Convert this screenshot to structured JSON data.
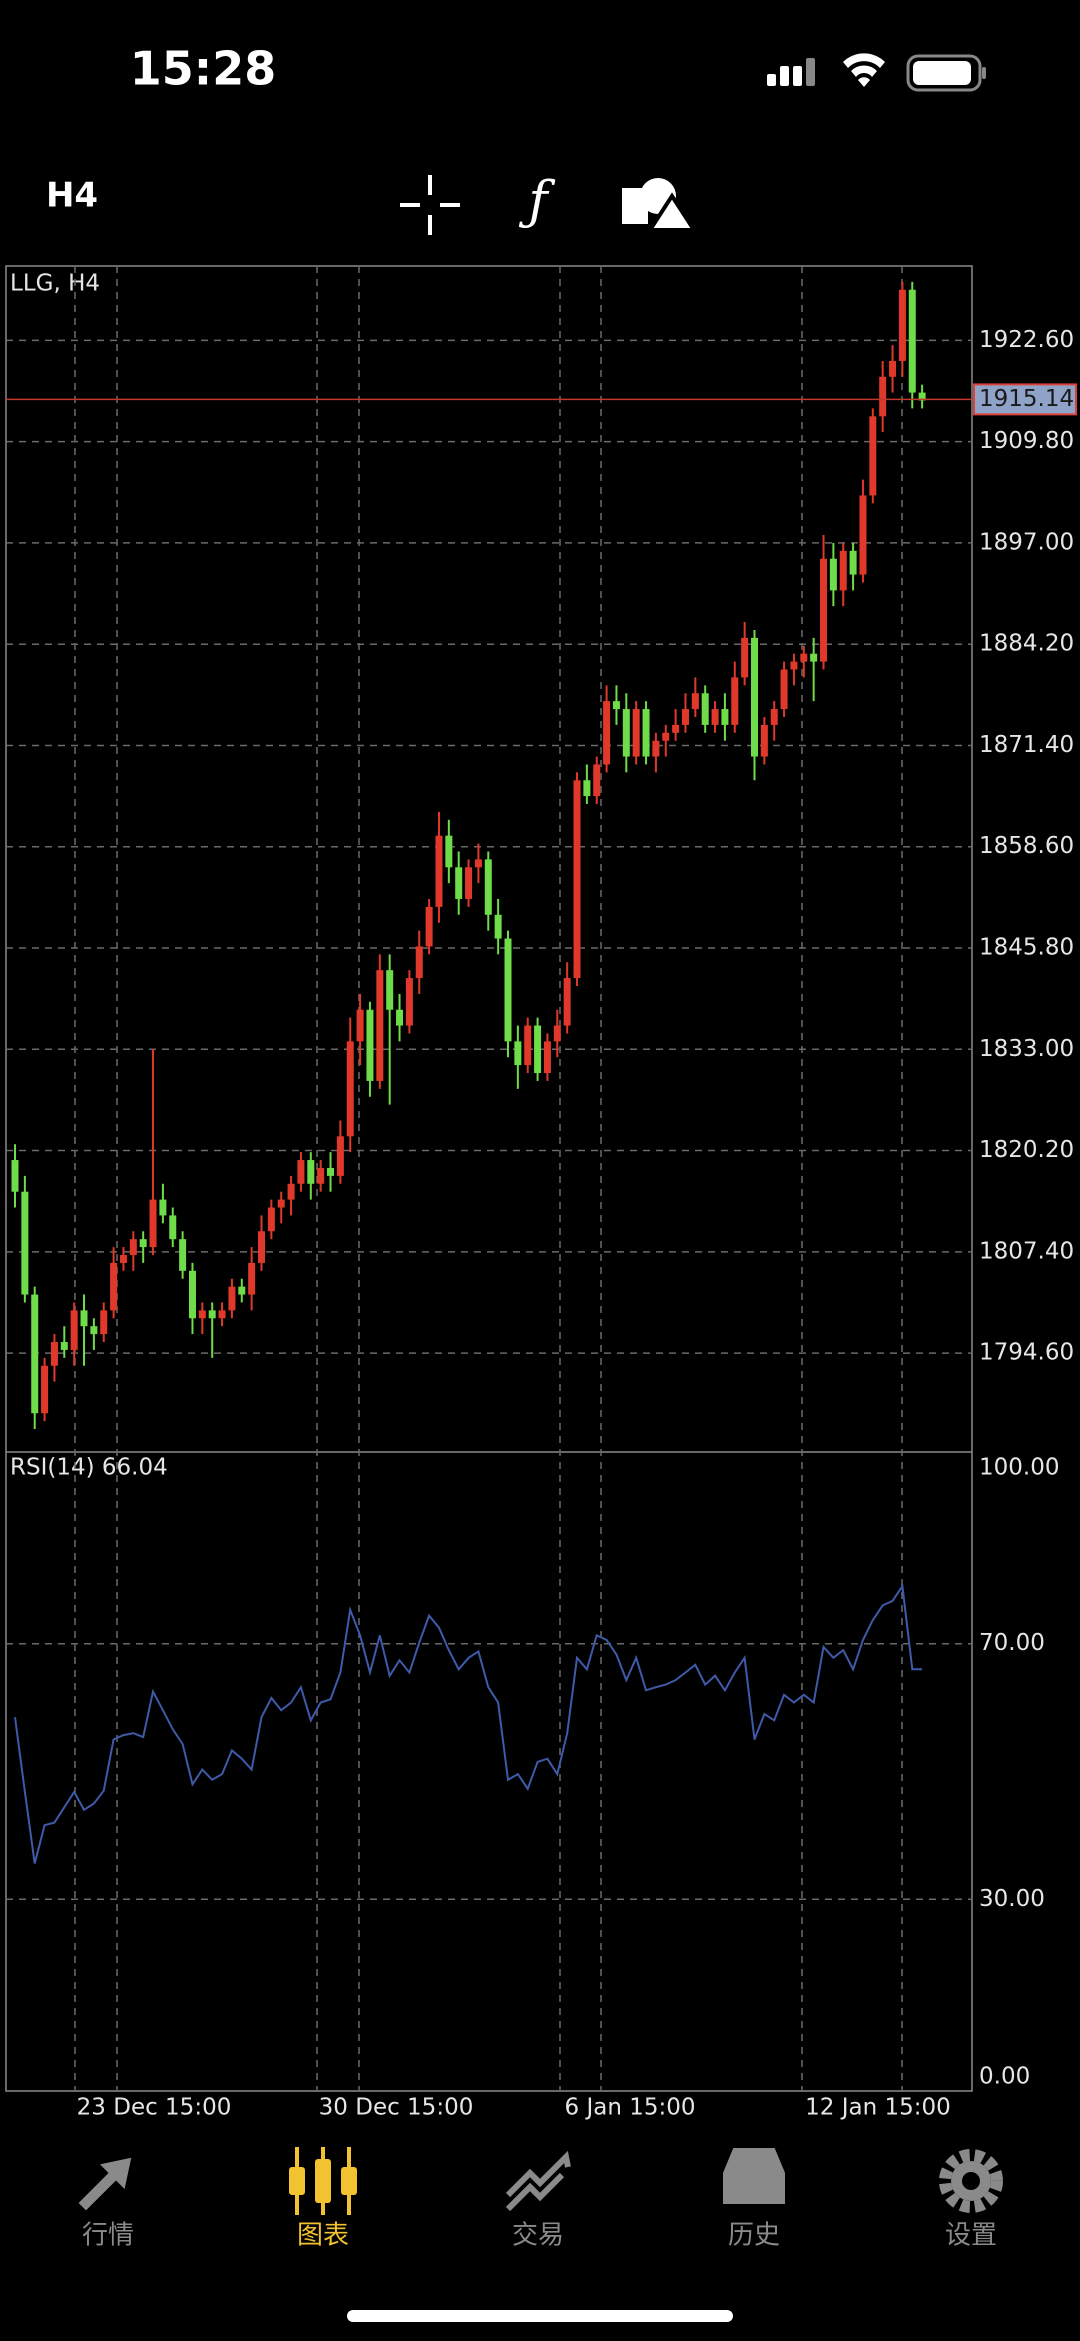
{
  "status_bar": {
    "time": "15:28"
  },
  "toolbar": {
    "timeframe": "H4"
  },
  "chart_data": {
    "type": "candlestick",
    "label": "LLG, H4",
    "up_color": "#e0392b",
    "down_color": "#6fdc4a",
    "ylim": [
      1782.1,
      1932.0
    ],
    "yticks": [
      {
        "value": 1794.6,
        "label": "1794.60"
      },
      {
        "value": 1807.4,
        "label": "1807.40"
      },
      {
        "value": 1820.2,
        "label": "1820.20"
      },
      {
        "value": 1833,
        "label": "1833.00"
      },
      {
        "value": 1845.8,
        "label": "1845.80"
      },
      {
        "value": 1858.6,
        "label": "1858.60"
      },
      {
        "value": 1871.4,
        "label": "1871.40"
      },
      {
        "value": 1884.2,
        "label": "1884.20"
      },
      {
        "value": 1897,
        "label": "1897.00"
      },
      {
        "value": 1909.8,
        "label": "1909.80"
      },
      {
        "value": 1922.6,
        "label": "1922.60"
      }
    ],
    "last_price": 1915.14,
    "xtick_labels": [
      "23 Dec 15:00",
      "30 Dec 15:00",
      "6 Jan 15:00",
      "12 Jan 15:00"
    ],
    "candles": [
      [
        1819,
        1821,
        1813,
        1815
      ],
      [
        1815,
        1817,
        1801,
        1802
      ],
      [
        1802,
        1803,
        1785,
        1787
      ],
      [
        1787,
        1794,
        1786,
        1793
      ],
      [
        1793,
        1797,
        1791,
        1796
      ],
      [
        1796,
        1798,
        1794,
        1795
      ],
      [
        1795,
        1801,
        1793,
        1800
      ],
      [
        1800,
        1802,
        1793,
        1798
      ],
      [
        1798,
        1799,
        1795,
        1797
      ],
      [
        1797,
        1801,
        1796,
        1800
      ],
      [
        1800,
        1808,
        1799,
        1806
      ],
      [
        1806,
        1808,
        1805,
        1807
      ],
      [
        1807,
        1810,
        1805,
        1809
      ],
      [
        1809,
        1810,
        1806,
        1808
      ],
      [
        1808,
        1833,
        1807,
        1814
      ],
      [
        1814,
        1816,
        1811,
        1812
      ],
      [
        1812,
        1813,
        1808,
        1809
      ],
      [
        1809,
        1810,
        1804,
        1805
      ],
      [
        1805,
        1806,
        1797,
        1799
      ],
      [
        1799,
        1801,
        1797,
        1800
      ],
      [
        1800,
        1801,
        1794,
        1799
      ],
      [
        1799,
        1801,
        1798,
        1800
      ],
      [
        1800,
        1804,
        1799,
        1803
      ],
      [
        1803,
        1804,
        1801,
        1802
      ],
      [
        1802,
        1808,
        1800,
        1806
      ],
      [
        1806,
        1812,
        1805,
        1810
      ],
      [
        1810,
        1814,
        1809,
        1813
      ],
      [
        1813,
        1815,
        1811,
        1814
      ],
      [
        1814,
        1817,
        1812,
        1816
      ],
      [
        1816,
        1820,
        1815,
        1819
      ],
      [
        1819,
        1820,
        1814,
        1816
      ],
      [
        1816,
        1819,
        1815,
        1818
      ],
      [
        1818,
        1820,
        1815,
        1817
      ],
      [
        1817,
        1824,
        1816,
        1822
      ],
      [
        1822,
        1837,
        1820,
        1834
      ],
      [
        1834,
        1840,
        1831,
        1838
      ],
      [
        1838,
        1839,
        1827,
        1829
      ],
      [
        1829,
        1845,
        1828,
        1843
      ],
      [
        1843,
        1845,
        1826,
        1838
      ],
      [
        1838,
        1840,
        1834,
        1836
      ],
      [
        1836,
        1843,
        1835,
        1842
      ],
      [
        1842,
        1848,
        1840,
        1846
      ],
      [
        1846,
        1852,
        1845,
        1851
      ],
      [
        1851,
        1863,
        1849,
        1860
      ],
      [
        1860,
        1862,
        1854,
        1856
      ],
      [
        1856,
        1858,
        1850,
        1852
      ],
      [
        1852,
        1857,
        1851,
        1856
      ],
      [
        1856,
        1859,
        1854,
        1857
      ],
      [
        1857,
        1858,
        1848,
        1850
      ],
      [
        1850,
        1852,
        1845,
        1847
      ],
      [
        1847,
        1848,
        1832,
        1834
      ],
      [
        1834,
        1836,
        1828,
        1831
      ],
      [
        1831,
        1837,
        1830,
        1836
      ],
      [
        1836,
        1837,
        1829,
        1830
      ],
      [
        1830,
        1835,
        1829,
        1834
      ],
      [
        1834,
        1838,
        1832,
        1836
      ],
      [
        1836,
        1844,
        1835,
        1842
      ],
      [
        1842,
        1868,
        1841,
        1867
      ],
      [
        1867,
        1869,
        1864,
        1865
      ],
      [
        1865,
        1870,
        1864,
        1869
      ],
      [
        1869,
        1879,
        1868,
        1877
      ],
      [
        1877,
        1879,
        1874,
        1876
      ],
      [
        1876,
        1878,
        1868,
        1870
      ],
      [
        1870,
        1877,
        1869,
        1876
      ],
      [
        1876,
        1877,
        1869,
        1870
      ],
      [
        1870,
        1873,
        1868,
        1872
      ],
      [
        1872,
        1874,
        1870,
        1873
      ],
      [
        1873,
        1876,
        1872,
        1874
      ],
      [
        1874,
        1878,
        1873,
        1876
      ],
      [
        1876,
        1880,
        1875,
        1878
      ],
      [
        1878,
        1879,
        1873,
        1874
      ],
      [
        1874,
        1877,
        1873,
        1876
      ],
      [
        1876,
        1878,
        1872,
        1874
      ],
      [
        1874,
        1882,
        1873,
        1880
      ],
      [
        1880,
        1887,
        1879,
        1885
      ],
      [
        1885,
        1886,
        1867,
        1870
      ],
      [
        1870,
        1875,
        1869,
        1874
      ],
      [
        1874,
        1877,
        1872,
        1876
      ],
      [
        1876,
        1882,
        1875,
        1881
      ],
      [
        1881,
        1883,
        1879,
        1882
      ],
      [
        1882,
        1884,
        1880,
        1883
      ],
      [
        1883,
        1885,
        1877,
        1882
      ],
      [
        1882,
        1898,
        1881,
        1895
      ],
      [
        1895,
        1897,
        1889,
        1891
      ],
      [
        1891,
        1897,
        1889,
        1896
      ],
      [
        1896,
        1897,
        1891,
        1893
      ],
      [
        1893,
        1905,
        1892,
        1903
      ],
      [
        1903,
        1914,
        1902,
        1913
      ],
      [
        1913,
        1920,
        1911,
        1918
      ],
      [
        1918,
        1922,
        1916,
        1920
      ],
      [
        1920,
        1930,
        1918,
        1929
      ],
      [
        1929,
        1930,
        1914,
        1916
      ],
      [
        1916,
        1917,
        1914,
        1915
      ]
    ],
    "indicator": {
      "label": "RSI(14) 66.04",
      "color": "#3f5aa8",
      "ylim": [
        0,
        100
      ],
      "yticks": [
        {
          "value": 0,
          "label": "0.00"
        },
        {
          "value": 30,
          "label": "30.00"
        },
        {
          "value": 70,
          "label": "70.00"
        },
        {
          "value": 100,
          "label": "100.00"
        }
      ],
      "values": [
        58.5,
        46.8,
        35.6,
        41.6,
        42,
        44.4,
        46.8,
        44,
        45,
        47,
        55,
        55.7,
        56,
        55.4,
        62.5,
        59.6,
        56.6,
        54.3,
        48,
        50.3,
        48.7,
        49.6,
        53.3,
        52,
        50.3,
        58.5,
        61.5,
        59.6,
        60.8,
        63.2,
        58,
        60.8,
        61.3,
        65.5,
        75.3,
        71.3,
        65.5,
        71.3,
        65,
        67.4,
        65.5,
        70.2,
        74.4,
        72.5,
        69,
        66,
        67.8,
        68.8,
        63.2,
        60.8,
        48.7,
        49.6,
        47.3,
        51.5,
        52,
        49.6,
        56,
        67.8,
        66,
        71.3,
        70.6,
        68.3,
        64.3,
        67.8,
        62.7,
        63.2,
        63.6,
        64.3,
        65.5,
        66.7,
        63.6,
        65,
        62.7,
        65.5,
        67.8,
        55,
        59,
        58,
        62,
        60.8,
        62,
        60.8,
        69.5,
        67.8,
        69,
        66,
        70.6,
        73.7,
        76,
        76.7,
        79,
        66,
        66
      ]
    }
  },
  "tabs": [
    {
      "label": "行情"
    },
    {
      "label": "图表"
    },
    {
      "label": "交易"
    },
    {
      "label": "历史"
    },
    {
      "label": "设置"
    }
  ]
}
